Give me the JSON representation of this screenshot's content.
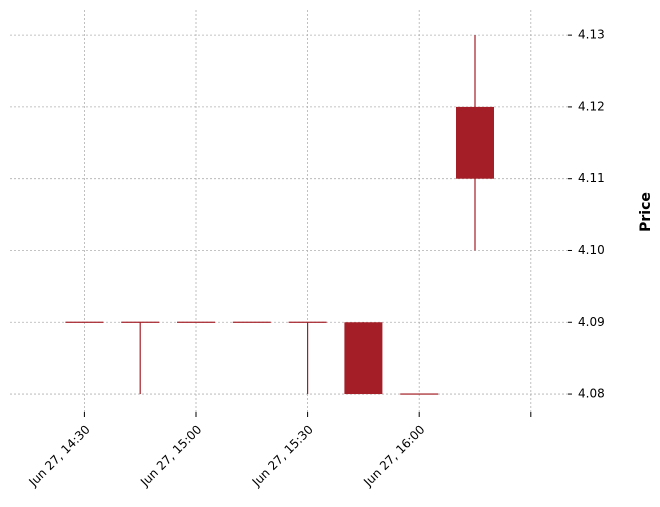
{
  "chart_data": {
    "type": "candlestick",
    "title": "",
    "xlabel": "",
    "ylabel": "Price",
    "y_axis_side": "right",
    "ylim": [
      4.0775,
      4.1335
    ],
    "y_ticks": [
      4.08,
      4.09,
      4.1,
      4.11,
      4.12,
      4.13
    ],
    "y_tick_labels": [
      "4.08",
      "4.09",
      "4.10",
      "4.11",
      "4.12",
      "4.13"
    ],
    "x_tick_labels": [
      "Jun 27, 14:30",
      "Jun 27, 15:00",
      "Jun 27, 15:30",
      "Jun 27, 16:00",
      ""
    ],
    "x_tick_times": [
      "2023-06-27 14:30",
      "2023-06-27 15:00",
      "2023-06-27 15:30",
      "2023-06-27 16:00",
      "2023-06-27 16:30"
    ],
    "x_range": [
      "2023-06-27 14:10",
      "2023-06-27 16:40"
    ],
    "grid": true,
    "colors": {
      "down": "#a31e26",
      "grid": "#b0b0b0"
    },
    "candles": [
      {
        "time": "2023-06-27 14:30",
        "open": 4.09,
        "high": 4.09,
        "low": 4.09,
        "close": 4.09
      },
      {
        "time": "2023-06-27 14:45",
        "open": 4.09,
        "high": 4.09,
        "low": 4.08,
        "close": 4.09
      },
      {
        "time": "2023-06-27 15:00",
        "open": 4.09,
        "high": 4.09,
        "low": 4.09,
        "close": 4.09
      },
      {
        "time": "2023-06-27 15:15",
        "open": 4.09,
        "high": 4.09,
        "low": 4.09,
        "close": 4.09
      },
      {
        "time": "2023-06-27 15:30",
        "open": 4.09,
        "high": 4.09,
        "low": 4.08,
        "close": 4.09
      },
      {
        "time": "2023-06-27 15:45",
        "open": 4.09,
        "high": 4.09,
        "low": 4.08,
        "close": 4.08
      },
      {
        "time": "2023-06-27 16:00",
        "open": 4.08,
        "high": 4.08,
        "low": 4.08,
        "close": 4.08
      },
      {
        "time": "2023-06-27 16:15",
        "open": 4.12,
        "high": 4.13,
        "low": 4.1,
        "close": 4.11
      }
    ]
  }
}
